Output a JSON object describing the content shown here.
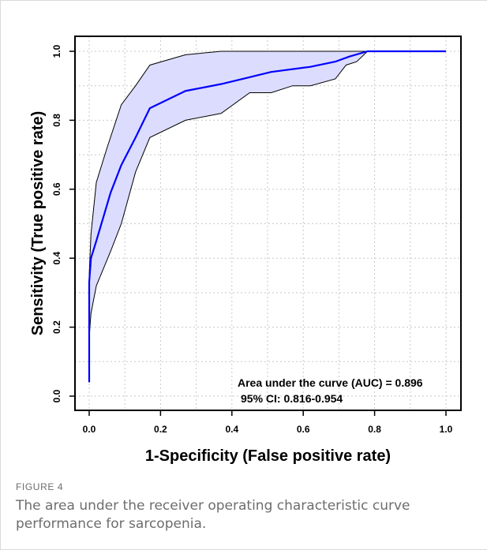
{
  "figure": {
    "label": "FIGURE 4",
    "caption": "The area under the receiver operating characteristic curve performance for sarcopenia."
  },
  "chart_data": {
    "type": "line",
    "xlabel": "1-Specificity (False positive rate)",
    "ylabel": "Sensitivity (True positive rate)",
    "xlim": [
      0,
      1
    ],
    "ylim": [
      0,
      1
    ],
    "xticks": [
      "0.0",
      "0.2",
      "0.4",
      "0.6",
      "0.8",
      "1.0"
    ],
    "yticks": [
      "0.0",
      "0.2",
      "0.4",
      "0.6",
      "0.8",
      "1.0"
    ],
    "grid": true,
    "colors": {
      "curve": "#0000ff",
      "band_fill": "#dcdcff",
      "band_edge": "#000000"
    },
    "series": [
      {
        "name": "ROC",
        "x": [
          0.0,
          0.0,
          0.005,
          0.02,
          0.04,
          0.06,
          0.09,
          0.13,
          0.17,
          0.27,
          0.37,
          0.45,
          0.51,
          0.62,
          0.69,
          0.73,
          0.78,
          1.0
        ],
        "y": [
          0.04,
          0.33,
          0.4,
          0.45,
          0.52,
          0.59,
          0.67,
          0.75,
          0.835,
          0.885,
          0.905,
          0.925,
          0.94,
          0.955,
          0.97,
          0.985,
          1.0,
          1.0
        ]
      },
      {
        "name": "CI upper",
        "x": [
          0.0,
          0.0,
          0.005,
          0.02,
          0.05,
          0.09,
          0.13,
          0.17,
          0.27,
          0.37,
          0.45,
          1.0
        ],
        "y": [
          0.04,
          0.35,
          0.47,
          0.62,
          0.72,
          0.845,
          0.9,
          0.96,
          0.99,
          1.0,
          1.0,
          1.0
        ]
      },
      {
        "name": "CI lower",
        "x": [
          0.0,
          0.0,
          0.005,
          0.02,
          0.06,
          0.09,
          0.13,
          0.17,
          0.27,
          0.37,
          0.45,
          0.51,
          0.57,
          0.62,
          0.69,
          0.72,
          0.75,
          0.78,
          1.0
        ],
        "y": [
          0.04,
          0.17,
          0.24,
          0.32,
          0.42,
          0.5,
          0.65,
          0.75,
          0.8,
          0.82,
          0.88,
          0.88,
          0.9,
          0.9,
          0.92,
          0.96,
          0.97,
          1.0,
          1.0
        ]
      }
    ],
    "annotations": [
      "Area under the curve (AUC) = 0.896",
      "95% CI: 0.816-0.954"
    ]
  }
}
